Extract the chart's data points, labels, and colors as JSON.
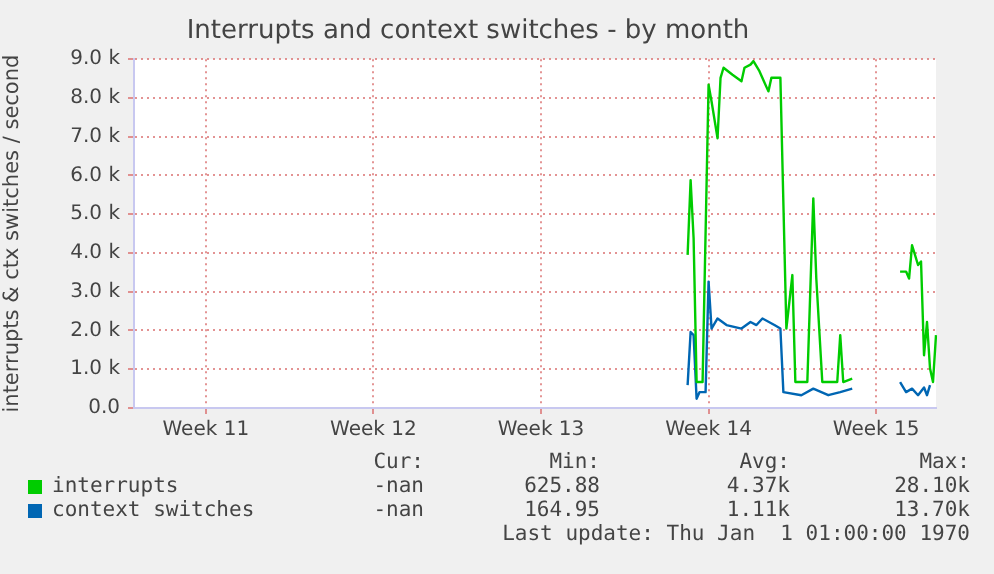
{
  "chart_data": {
    "type": "line",
    "title": "Interrupts and context switches - by month",
    "ylabel": "interrupts & ctx switches / second",
    "categories": [
      null,
      null,
      null,
      null,
      null,
      null,
      null,
      null,
      null,
      null,
      null,
      null,
      null,
      null,
      null,
      null,
      null,
      null,
      null,
      null,
      null,
      null,
      null,
      null,
      "Week 11",
      null,
      null,
      null,
      null,
      null,
      null,
      null,
      null,
      null,
      null,
      null,
      null,
      null,
      null,
      null,
      null,
      null,
      null,
      null,
      null,
      null,
      null,
      null,
      null,
      null,
      null,
      null,
      null,
      null,
      null,
      null,
      null,
      null,
      null,
      null,
      null,
      null,
      null,
      null,
      null,
      null,
      null,
      null,
      null,
      null,
      null,
      null,
      null,
      null,
      null,
      null,
      null,
      null,
      null,
      null,
      "Week 12",
      null,
      null,
      null,
      null,
      null,
      null,
      null,
      null,
      null,
      null,
      null,
      null,
      null,
      null,
      null,
      null,
      null,
      null,
      null,
      null,
      null,
      null,
      null,
      null,
      null,
      null,
      null,
      null,
      null,
      null,
      null,
      null,
      null,
      null,
      null,
      null,
      null,
      null,
      null,
      null,
      null,
      null,
      null,
      null,
      null,
      null,
      null,
      null,
      null,
      null,
      null,
      null,
      null,
      null,
      null,
      "Week 13",
      null,
      null,
      null,
      null,
      null,
      null,
      null,
      null,
      null,
      null,
      null,
      null,
      null,
      null,
      null,
      null,
      null,
      null,
      null,
      null,
      null,
      null,
      null,
      null,
      null,
      null,
      null,
      null,
      null,
      null,
      null,
      null,
      null,
      null,
      null,
      null,
      null,
      null,
      null,
      null,
      null,
      null,
      null,
      null,
      null,
      null,
      null,
      null,
      null,
      null,
      null,
      null,
      null,
      null,
      null,
      "Week 14",
      null,
      null,
      null,
      null,
      null,
      null,
      null,
      null,
      null,
      null,
      null,
      null,
      null,
      null,
      null,
      null,
      null,
      null,
      null,
      null,
      null,
      null,
      null,
      null,
      null,
      null,
      null,
      null,
      null,
      null,
      null,
      null,
      null,
      null,
      null,
      null,
      null,
      null,
      null,
      null,
      null,
      null,
      null,
      null,
      null,
      null,
      null,
      null,
      null,
      null,
      null,
      null,
      null,
      null,
      null,
      "Week 15",
      null,
      null,
      null,
      null,
      null,
      null,
      null,
      null,
      null,
      null,
      null,
      null,
      null,
      null,
      null,
      null,
      null,
      null,
      null,
      null
    ],
    "ylim": [
      0,
      9000
    ],
    "yticks": [
      {
        "value": 0,
        "label": "0.0"
      },
      {
        "value": 1000,
        "label": "1.0 k"
      },
      {
        "value": 2000,
        "label": "2.0 k"
      },
      {
        "value": 3000,
        "label": "3.0 k"
      },
      {
        "value": 4000,
        "label": "4.0 k"
      },
      {
        "value": 5000,
        "label": "5.0 k"
      },
      {
        "value": 6000,
        "label": "6.0 k"
      },
      {
        "value": 7000,
        "label": "7.0 k"
      },
      {
        "value": 8000,
        "label": "8.0 k"
      },
      {
        "value": 9000,
        "label": "9.0 k"
      }
    ],
    "grid": true,
    "legend": "bottom",
    "marker": "none",
    "line_style": "solid",
    "series": [
      {
        "name": "interrupts",
        "color": "#00cc00",
        "values": [
          null,
          null,
          null,
          null,
          null,
          null,
          null,
          null,
          null,
          null,
          null,
          null,
          null,
          null,
          null,
          null,
          null,
          null,
          null,
          null,
          null,
          null,
          null,
          null,
          null,
          null,
          null,
          null,
          null,
          null,
          null,
          null,
          null,
          null,
          null,
          null,
          null,
          null,
          null,
          null,
          null,
          null,
          null,
          null,
          null,
          null,
          null,
          null,
          null,
          null,
          null,
          null,
          null,
          null,
          null,
          null,
          null,
          null,
          null,
          null,
          null,
          null,
          null,
          null,
          null,
          null,
          null,
          null,
          null,
          null,
          null,
          null,
          null,
          null,
          null,
          null,
          null,
          null,
          null,
          null,
          null,
          null,
          null,
          null,
          null,
          null,
          null,
          null,
          null,
          null,
          null,
          null,
          null,
          null,
          null,
          null,
          null,
          null,
          null,
          null,
          null,
          null,
          null,
          null,
          null,
          null,
          null,
          null,
          null,
          null,
          null,
          null,
          null,
          null,
          null,
          null,
          null,
          null,
          null,
          null,
          null,
          null,
          null,
          null,
          null,
          null,
          null,
          null,
          null,
          null,
          null,
          null,
          null,
          null,
          null,
          null,
          null,
          null,
          null,
          null,
          null,
          null,
          null,
          null,
          null,
          null,
          null,
          null,
          null,
          null,
          null,
          null,
          null,
          null,
          null,
          null,
          null,
          null,
          null,
          null,
          null,
          null,
          null,
          null,
          null,
          null,
          null,
          null,
          null,
          null,
          null,
          null,
          null,
          null,
          null,
          null,
          null,
          null,
          null,
          null,
          null,
          null,
          null,
          null,
          null,
          3950,
          5880,
          4380,
          670,
          null,
          670,
          null,
          8340,
          7910,
          null,
          6960,
          8520,
          8780,
          null,
          null,
          8600,
          null,
          null,
          8430,
          8780,
          null,
          8860,
          8950,
          null,
          8690,
          null,
          null,
          8170,
          8520,
          null,
          null,
          8520,
          null,
          2050,
          2740,
          3430,
          670,
          null,
          null,
          null,
          670,
          null,
          5410,
          3340,
          null,
          670,
          null,
          null,
          null,
          null,
          670,
          1880,
          670,
          null,
          null,
          760,
          null,
          null,
          null,
          null,
          null,
          null,
          null,
          null,
          null,
          null,
          null,
          null,
          null,
          null,
          null,
          3520,
          null,
          3520,
          3340,
          4200,
          null,
          3690,
          3780,
          1360,
          2220,
          1020,
          670,
          1880
        ]
      },
      {
        "name": "context switches",
        "color": "#0066b3",
        "values": [
          null,
          null,
          null,
          null,
          null,
          null,
          null,
          null,
          null,
          null,
          null,
          null,
          null,
          null,
          null,
          null,
          null,
          null,
          null,
          null,
          null,
          null,
          null,
          null,
          null,
          null,
          null,
          null,
          null,
          null,
          null,
          null,
          null,
          null,
          null,
          null,
          null,
          null,
          null,
          null,
          null,
          null,
          null,
          null,
          null,
          null,
          null,
          null,
          null,
          null,
          null,
          null,
          null,
          null,
          null,
          null,
          null,
          null,
          null,
          null,
          null,
          null,
          null,
          null,
          null,
          null,
          null,
          null,
          null,
          null,
          null,
          null,
          null,
          null,
          null,
          null,
          null,
          null,
          null,
          null,
          null,
          null,
          null,
          null,
          null,
          null,
          null,
          null,
          null,
          null,
          null,
          null,
          null,
          null,
          null,
          null,
          null,
          null,
          null,
          null,
          null,
          null,
          null,
          null,
          null,
          null,
          null,
          null,
          null,
          null,
          null,
          null,
          null,
          null,
          null,
          null,
          null,
          null,
          null,
          null,
          null,
          null,
          null,
          null,
          null,
          null,
          null,
          null,
          null,
          null,
          null,
          null,
          null,
          null,
          null,
          null,
          null,
          null,
          null,
          null,
          null,
          null,
          null,
          null,
          null,
          null,
          null,
          null,
          null,
          null,
          null,
          null,
          null,
          null,
          null,
          null,
          null,
          null,
          null,
          null,
          null,
          null,
          null,
          null,
          null,
          null,
          null,
          null,
          null,
          null,
          null,
          null,
          null,
          null,
          null,
          null,
          null,
          null,
          null,
          null,
          null,
          null,
          null,
          null,
          null,
          590,
          1960,
          1880,
          240,
          410,
          null,
          410,
          3260,
          2050,
          null,
          2310,
          null,
          null,
          2140,
          null,
          null,
          null,
          null,
          2050,
          null,
          null,
          2220,
          null,
          2140,
          null,
          2310,
          null,
          null,
          null,
          2140,
          null,
          2050,
          410,
          null,
          null,
          null,
          null,
          null,
          330,
          null,
          null,
          null,
          500,
          null,
          null,
          null,
          null,
          330,
          null,
          null,
          null,
          410,
          null,
          null,
          null,
          500,
          null,
          null,
          null,
          null,
          null,
          null,
          null,
          null,
          null,
          null,
          null,
          null,
          null,
          null,
          null,
          670,
          null,
          410,
          null,
          500,
          null,
          330,
          null,
          530,
          330,
          590,
          null,
          null
        ]
      }
    ],
    "annotations": [
      "Cur:",
      "Min:",
      "Avg:",
      "Max:",
      "-nan",
      "625.88",
      "4.37k",
      "28.10k",
      "-nan",
      "164.95",
      "1.11k",
      "13.70k",
      "Last update: Thu Jan  1 01:00:00 1970"
    ]
  }
}
